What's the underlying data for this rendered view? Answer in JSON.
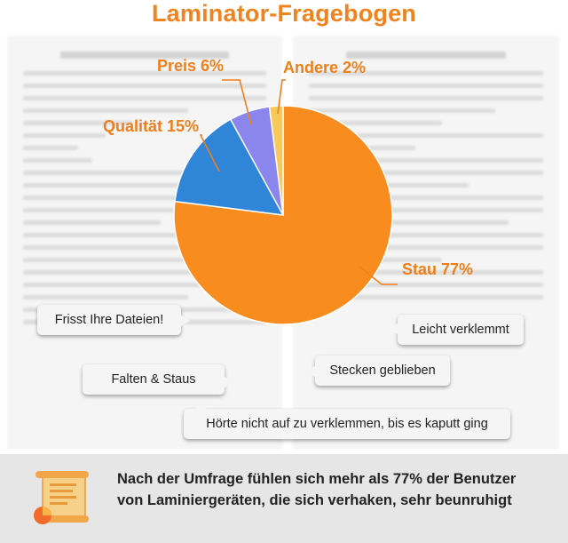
{
  "title": "Laminator-Fragebogen",
  "chart_data": {
    "type": "pie",
    "slices": [
      {
        "label": "Stau 77%",
        "value": 77,
        "color": "#f98c1f"
      },
      {
        "label": "Qualität 15%",
        "value": 15,
        "color": "#2f85d8"
      },
      {
        "label": "Preis 6%",
        "value": 6,
        "color": "#8a86ee"
      },
      {
        "label": "Andere 2%",
        "value": 2,
        "color": "#f7c95a"
      }
    ],
    "label_color": "#ef7f1a"
  },
  "bubbles": {
    "frisst": "Frisst Ihre Dateien!",
    "falten": "Falten & Staus",
    "leicht": "Leicht verklemmt",
    "stecken": "Stecken geblieben",
    "hoerte": "Hörte nicht auf zu verklemmen, bis es kaputt ging"
  },
  "footer": {
    "text": "Nach der Umfrage fühlen sich mehr als 77% der Benutzer von Laminiergeräten, die sich verhaken, sehr beunruhigt",
    "icon": "laminator-document-icon"
  }
}
